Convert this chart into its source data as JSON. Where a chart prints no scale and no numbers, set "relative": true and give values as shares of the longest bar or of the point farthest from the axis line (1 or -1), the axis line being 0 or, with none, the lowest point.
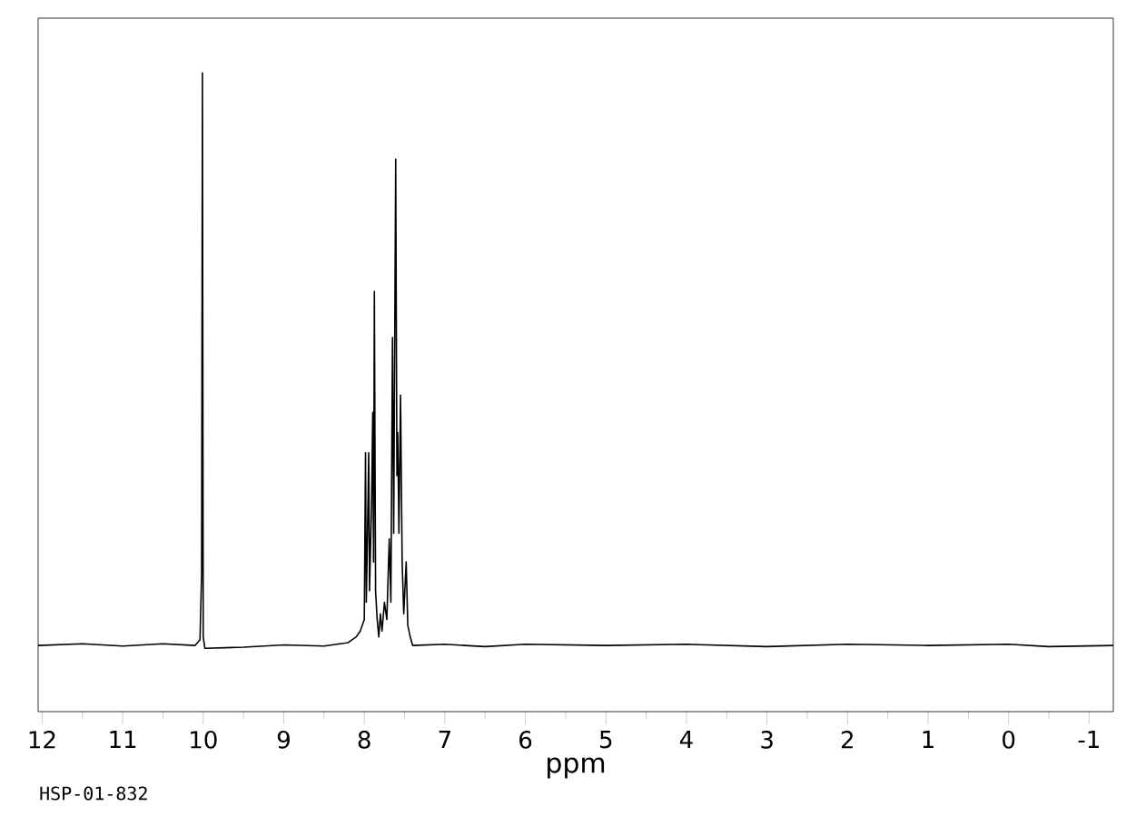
{
  "chart_data": {
    "type": "line",
    "relative": true,
    "xlabel": "ppm",
    "annotations": [
      "HSP-01-832"
    ],
    "xlim": [
      12.05,
      -1.3
    ],
    "xticks": [
      12,
      11,
      10,
      9,
      8,
      7,
      6,
      5,
      4,
      3,
      2,
      1,
      0,
      -1
    ],
    "series": [
      {
        "color": "#000000",
        "x": [
          12.05,
          11.5,
          11.0,
          10.5,
          10.1,
          10.04,
          10.02,
          10.01,
          10.0,
          9.98,
          9.5,
          9.0,
          8.5,
          8.2,
          8.1,
          8.05,
          8.0,
          7.985,
          7.975,
          7.96,
          7.945,
          7.935,
          7.91,
          7.895,
          7.885,
          7.875,
          7.86,
          7.84,
          7.82,
          7.8,
          7.78,
          7.75,
          7.72,
          7.69,
          7.67,
          7.65,
          7.635,
          7.61,
          7.595,
          7.585,
          7.57,
          7.55,
          7.53,
          7.51,
          7.48,
          7.46,
          7.43,
          7.4,
          7.0,
          6.5,
          6.0,
          5.0,
          4.0,
          3.0,
          2.0,
          1.0,
          0.0,
          -0.5,
          -1.3
        ],
        "values": [
          0.005,
          0.008,
          0.004,
          0.008,
          0.005,
          0.015,
          0.13,
          1.0,
          0.02,
          0.0,
          0.002,
          0.006,
          0.004,
          0.01,
          0.02,
          0.03,
          0.05,
          0.34,
          0.08,
          0.2,
          0.34,
          0.1,
          0.25,
          0.41,
          0.15,
          0.62,
          0.1,
          0.05,
          0.02,
          0.06,
          0.03,
          0.08,
          0.05,
          0.19,
          0.08,
          0.54,
          0.2,
          0.85,
          0.3,
          0.375,
          0.2,
          0.44,
          0.15,
          0.06,
          0.15,
          0.04,
          0.02,
          0.005,
          0.007,
          0.003,
          0.007,
          0.005,
          0.007,
          0.003,
          0.007,
          0.005,
          0.007,
          0.003,
          0.005
        ]
      }
    ]
  }
}
